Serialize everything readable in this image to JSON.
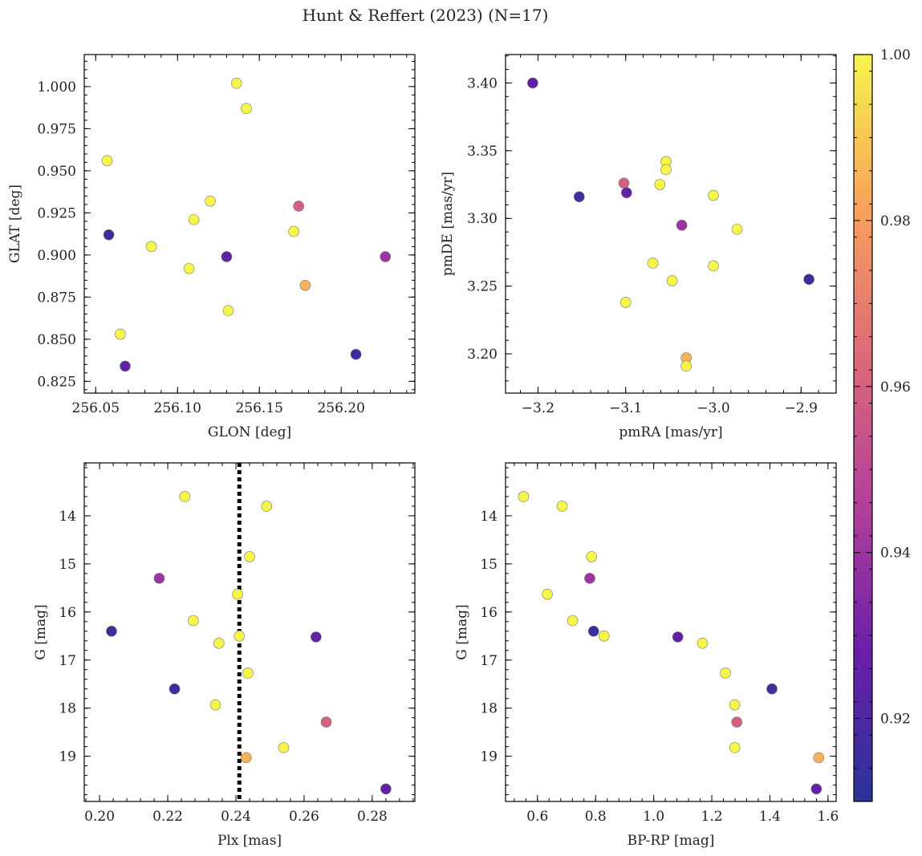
{
  "title": "Hunt & Reffert (2023) (N=17)",
  "colorbar": {
    "min": 0.91,
    "max": 1.0,
    "ticks": [
      0.92,
      0.94,
      0.96,
      0.98,
      1.0
    ],
    "tick_labels": [
      "0.92",
      "0.94",
      "0.96",
      "0.98",
      "1.00"
    ],
    "colormap": "plasma"
  },
  "chart_data": [
    {
      "type": "scatter",
      "id": "glon-glat",
      "xlabel": "GLON [deg]",
      "ylabel": "GLAT [deg]",
      "xlim": [
        256.043,
        256.245
      ],
      "ylim": [
        0.818,
        1.019
      ],
      "invert_y": false,
      "xticks": [
        256.05,
        256.1,
        256.15,
        256.2
      ],
      "xtick_labels": [
        "256.05",
        "256.10",
        "256.15",
        "256.20"
      ],
      "yticks": [
        0.825,
        0.85,
        0.875,
        0.9,
        0.925,
        0.95,
        0.975,
        1.0
      ],
      "ytick_labels": [
        "0.825",
        "0.850",
        "0.875",
        "0.900",
        "0.925",
        "0.950",
        "0.975",
        "1.000"
      ],
      "points": [
        {
          "x": 256.136,
          "y": 1.002,
          "p": 1.0
        },
        {
          "x": 256.142,
          "y": 0.987,
          "p": 1.0
        },
        {
          "x": 256.057,
          "y": 0.956,
          "p": 1.0
        },
        {
          "x": 256.12,
          "y": 0.932,
          "p": 1.0
        },
        {
          "x": 256.11,
          "y": 0.921,
          "p": 1.0
        },
        {
          "x": 256.174,
          "y": 0.929,
          "p": 0.96
        },
        {
          "x": 256.171,
          "y": 0.914,
          "p": 1.0
        },
        {
          "x": 256.058,
          "y": 0.912,
          "p": 0.915
        },
        {
          "x": 256.084,
          "y": 0.905,
          "p": 1.0
        },
        {
          "x": 256.107,
          "y": 0.892,
          "p": 1.0
        },
        {
          "x": 256.13,
          "y": 0.899,
          "p": 0.925
        },
        {
          "x": 256.227,
          "y": 0.899,
          "p": 0.94
        },
        {
          "x": 256.178,
          "y": 0.882,
          "p": 0.985
        },
        {
          "x": 256.131,
          "y": 0.867,
          "p": 1.0
        },
        {
          "x": 256.065,
          "y": 0.853,
          "p": 1.0
        },
        {
          "x": 256.209,
          "y": 0.841,
          "p": 0.915
        },
        {
          "x": 256.068,
          "y": 0.834,
          "p": 0.925
        }
      ]
    },
    {
      "type": "scatter",
      "id": "pmra-pmde",
      "xlabel": "pmRA [mas/yr]",
      "ylabel": "pmDE [mas/yr]",
      "xlim": [
        -3.237,
        -2.86
      ],
      "ylim": [
        3.171,
        3.421
      ],
      "invert_y": false,
      "xticks": [
        -3.2,
        -3.1,
        -3.0,
        -2.9
      ],
      "xtick_labels": [
        "−3.2",
        "−3.1",
        "−3.0",
        "−2.9"
      ],
      "yticks": [
        3.2,
        3.25,
        3.3,
        3.35,
        3.4
      ],
      "ytick_labels": [
        "3.20",
        "3.25",
        "3.30",
        "3.35",
        "3.40"
      ],
      "points": [
        {
          "x": -3.206,
          "y": 3.4,
          "p": 0.925
        },
        {
          "x": -3.054,
          "y": 3.342,
          "p": 1.0
        },
        {
          "x": -3.054,
          "y": 3.336,
          "p": 1.0
        },
        {
          "x": -3.102,
          "y": 3.326,
          "p": 0.96
        },
        {
          "x": -3.061,
          "y": 3.325,
          "p": 1.0
        },
        {
          "x": -3.099,
          "y": 3.319,
          "p": 0.925
        },
        {
          "x": -3.153,
          "y": 3.316,
          "p": 0.915
        },
        {
          "x": -3.0,
          "y": 3.317,
          "p": 1.0
        },
        {
          "x": -3.036,
          "y": 3.295,
          "p": 0.94
        },
        {
          "x": -2.973,
          "y": 3.292,
          "p": 1.0
        },
        {
          "x": -3.069,
          "y": 3.267,
          "p": 1.0
        },
        {
          "x": -3.0,
          "y": 3.265,
          "p": 1.0
        },
        {
          "x": -3.047,
          "y": 3.254,
          "p": 1.0
        },
        {
          "x": -2.891,
          "y": 3.255,
          "p": 0.915
        },
        {
          "x": -3.1,
          "y": 3.238,
          "p": 1.0
        },
        {
          "x": -3.031,
          "y": 3.197,
          "p": 0.985
        },
        {
          "x": -3.031,
          "y": 3.191,
          "p": 1.0
        }
      ]
    },
    {
      "type": "scatter",
      "id": "plx-g",
      "xlabel": "Plx [mas]",
      "ylabel": "G [mag]",
      "xlim": [
        0.1955,
        0.2925
      ],
      "ylim": [
        12.9,
        19.94
      ],
      "invert_y": true,
      "vline": {
        "x": 0.241,
        "style": "dotted"
      },
      "xticks": [
        0.2,
        0.22,
        0.24,
        0.26,
        0.28
      ],
      "xtick_labels": [
        "0.20",
        "0.22",
        "0.24",
        "0.26",
        "0.28"
      ],
      "yticks": [
        14,
        15,
        16,
        17,
        18,
        19
      ],
      "ytick_labels": [
        "14",
        "15",
        "16",
        "17",
        "18",
        "19"
      ],
      "points": [
        {
          "x": 0.225,
          "y": 13.6,
          "p": 1.0
        },
        {
          "x": 0.249,
          "y": 13.8,
          "p": 1.0
        },
        {
          "x": 0.244,
          "y": 14.85,
          "p": 1.0
        },
        {
          "x": 0.2175,
          "y": 15.3,
          "p": 0.94
        },
        {
          "x": 0.2405,
          "y": 15.63,
          "p": 1.0
        },
        {
          "x": 0.2275,
          "y": 16.18,
          "p": 1.0
        },
        {
          "x": 0.2035,
          "y": 16.4,
          "p": 0.915
        },
        {
          "x": 0.241,
          "y": 16.5,
          "p": 1.0
        },
        {
          "x": 0.2635,
          "y": 16.52,
          "p": 0.925
        },
        {
          "x": 0.235,
          "y": 16.65,
          "p": 1.0
        },
        {
          "x": 0.2435,
          "y": 17.27,
          "p": 1.0
        },
        {
          "x": 0.222,
          "y": 17.6,
          "p": 0.915
        },
        {
          "x": 0.234,
          "y": 17.93,
          "p": 1.0
        },
        {
          "x": 0.2665,
          "y": 18.29,
          "p": 0.96
        },
        {
          "x": 0.254,
          "y": 18.82,
          "p": 1.0
        },
        {
          "x": 0.243,
          "y": 19.03,
          "p": 0.985
        },
        {
          "x": 0.284,
          "y": 19.68,
          "p": 0.925
        }
      ]
    },
    {
      "type": "scatter",
      "id": "bprp-g",
      "xlabel": "BP-RP [mag]",
      "ylabel": "G [mag]",
      "xlim": [
        0.49,
        1.628
      ],
      "ylim": [
        12.9,
        19.94
      ],
      "invert_y": true,
      "xticks": [
        0.6,
        0.8,
        1.0,
        1.2,
        1.4,
        1.6
      ],
      "xtick_labels": [
        "0.6",
        "0.8",
        "1.0",
        "1.2",
        "1.4",
        "1.6"
      ],
      "yticks": [
        14,
        15,
        16,
        17,
        18,
        19
      ],
      "ytick_labels": [
        "14",
        "15",
        "16",
        "17",
        "18",
        "19"
      ],
      "points": [
        {
          "x": 0.552,
          "y": 13.6,
          "p": 1.0
        },
        {
          "x": 0.685,
          "y": 13.8,
          "p": 1.0
        },
        {
          "x": 0.786,
          "y": 14.85,
          "p": 1.0
        },
        {
          "x": 0.78,
          "y": 15.3,
          "p": 0.94
        },
        {
          "x": 0.634,
          "y": 15.63,
          "p": 1.0
        },
        {
          "x": 0.721,
          "y": 16.18,
          "p": 1.0
        },
        {
          "x": 0.793,
          "y": 16.4,
          "p": 0.915
        },
        {
          "x": 0.829,
          "y": 16.5,
          "p": 1.0
        },
        {
          "x": 1.083,
          "y": 16.52,
          "p": 0.925
        },
        {
          "x": 1.168,
          "y": 16.65,
          "p": 1.0
        },
        {
          "x": 1.247,
          "y": 17.27,
          "p": 1.0
        },
        {
          "x": 1.407,
          "y": 17.6,
          "p": 0.915
        },
        {
          "x": 1.279,
          "y": 17.93,
          "p": 1.0
        },
        {
          "x": 1.286,
          "y": 18.29,
          "p": 0.96
        },
        {
          "x": 1.279,
          "y": 18.82,
          "p": 1.0
        },
        {
          "x": 1.568,
          "y": 19.03,
          "p": 0.985
        },
        {
          "x": 1.56,
          "y": 19.68,
          "p": 0.925
        }
      ]
    }
  ]
}
